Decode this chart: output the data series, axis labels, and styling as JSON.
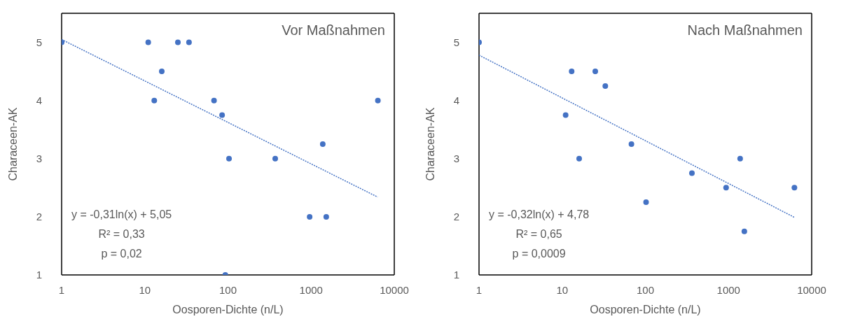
{
  "chart_data": [
    {
      "type": "scatter",
      "title": "Vor Maßnahmen",
      "xlabel": "Oosporen-Dichte (n/L)",
      "ylabel": "Characeen-AK",
      "log": "x",
      "xlim": [
        1,
        10000
      ],
      "xticks": [
        1,
        10,
        100,
        1000,
        10000
      ],
      "ylim": [
        1,
        5.5
      ],
      "yticks": [
        1,
        2,
        3,
        4,
        5
      ],
      "marker": "circle",
      "annotations": [
        "y = -0,31ln(x) + 5,05",
        "R² = 0,33",
        "p = 0,02"
      ],
      "series": [
        {
          "color": "#4472c4",
          "x": [
            1,
            11,
            25,
            34,
            16,
            13,
            68,
            85,
            103,
            370,
            1380,
            960,
            1520,
            6350,
            93
          ],
          "values": [
            5,
            5,
            5,
            5,
            4.5,
            4,
            4,
            3.75,
            3,
            3,
            3.25,
            2,
            2,
            4,
            1
          ]
        },
        {
          "type": "line",
          "color": "#4472c4",
          "line_style": "dotted",
          "marker": "none",
          "x": [
            1,
            6300
          ],
          "values": [
            5.05,
            2.34
          ]
        }
      ]
    },
    {
      "type": "scatter",
      "title": "Nach Maßnahmen",
      "xlabel": "Oosporen-Dichte (n/L)",
      "ylabel": "Characeen-AK",
      "log": "x",
      "xlim": [
        1,
        10000
      ],
      "xticks": [
        1,
        10,
        100,
        1000,
        10000
      ],
      "ylim": [
        1,
        5.5
      ],
      "yticks": [
        1,
        2,
        3,
        4,
        5
      ],
      "marker": "circle",
      "annotations": [
        "y = -0,32ln(x) + 4,78",
        "R² = 0,65",
        "p = 0,0009"
      ],
      "series": [
        {
          "color": "#4472c4",
          "x": [
            1,
            13,
            25,
            33,
            11,
            16,
            68,
            102,
            363,
            935,
            1380,
            1550,
            6200
          ],
          "values": [
            5,
            4.5,
            4.5,
            4.25,
            3.75,
            3,
            3.25,
            2.25,
            2.75,
            2.5,
            3,
            1.75,
            2.5
          ]
        },
        {
          "type": "line",
          "color": "#4472c4",
          "line_style": "dotted",
          "marker": "none",
          "x": [
            1,
            6200
          ],
          "values": [
            4.78,
            1.99
          ]
        }
      ]
    }
  ]
}
